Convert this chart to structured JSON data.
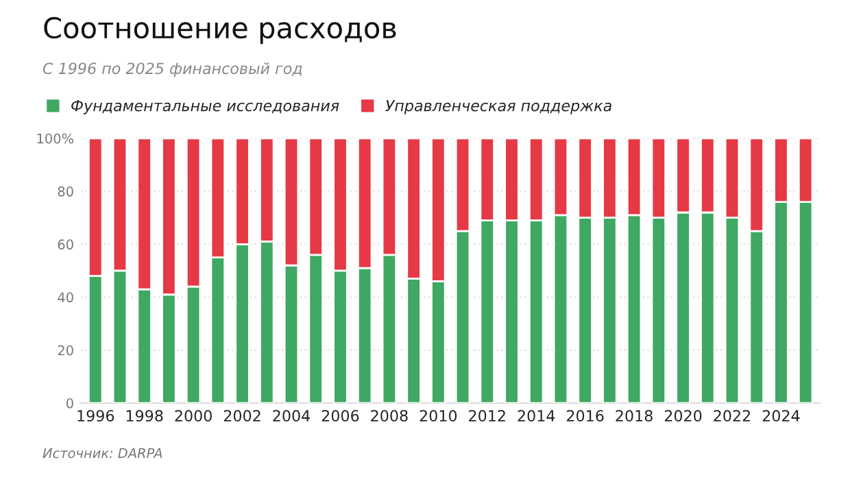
{
  "chart_data": {
    "type": "bar",
    "stacked": true,
    "title": "Соотношение расходов",
    "subtitle": "С 1996 по 2025 финансовый год",
    "categories": [
      "1996",
      null,
      "1998",
      null,
      "2000",
      null,
      "2002",
      null,
      "2004",
      null,
      "2006",
      null,
      "2008",
      null,
      "2010",
      null,
      "2012",
      null,
      "2014",
      null,
      "2016",
      null,
      "2018",
      null,
      "2020",
      null,
      "2022",
      null,
      "2024",
      null
    ],
    "series": [
      {
        "name": "Фундаментальные исследования",
        "color": "#3fa862",
        "values": [
          48,
          50,
          43,
          41,
          44,
          55,
          60,
          61,
          52,
          56,
          50,
          51,
          56,
          47,
          46,
          65,
          69,
          69,
          69,
          71,
          70,
          70,
          71,
          70,
          72,
          72,
          70,
          65,
          76,
          76
        ]
      },
      {
        "name": "Управленческая поддержка",
        "color": "#e63946",
        "values": [
          52,
          50,
          57,
          59,
          56,
          45,
          40,
          39,
          48,
          44,
          50,
          49,
          44,
          53,
          54,
          35,
          31,
          31,
          31,
          29,
          30,
          30,
          29,
          30,
          28,
          28,
          30,
          35,
          24,
          24
        ]
      }
    ],
    "ylim": [
      0,
      100
    ],
    "yticks": [
      0,
      20,
      40,
      60,
      80,
      {
        "value": 100,
        "label": "100%"
      }
    ],
    "grid": "y",
    "legend": "top left",
    "annotations": [
      "Источник: DARPA"
    ]
  }
}
